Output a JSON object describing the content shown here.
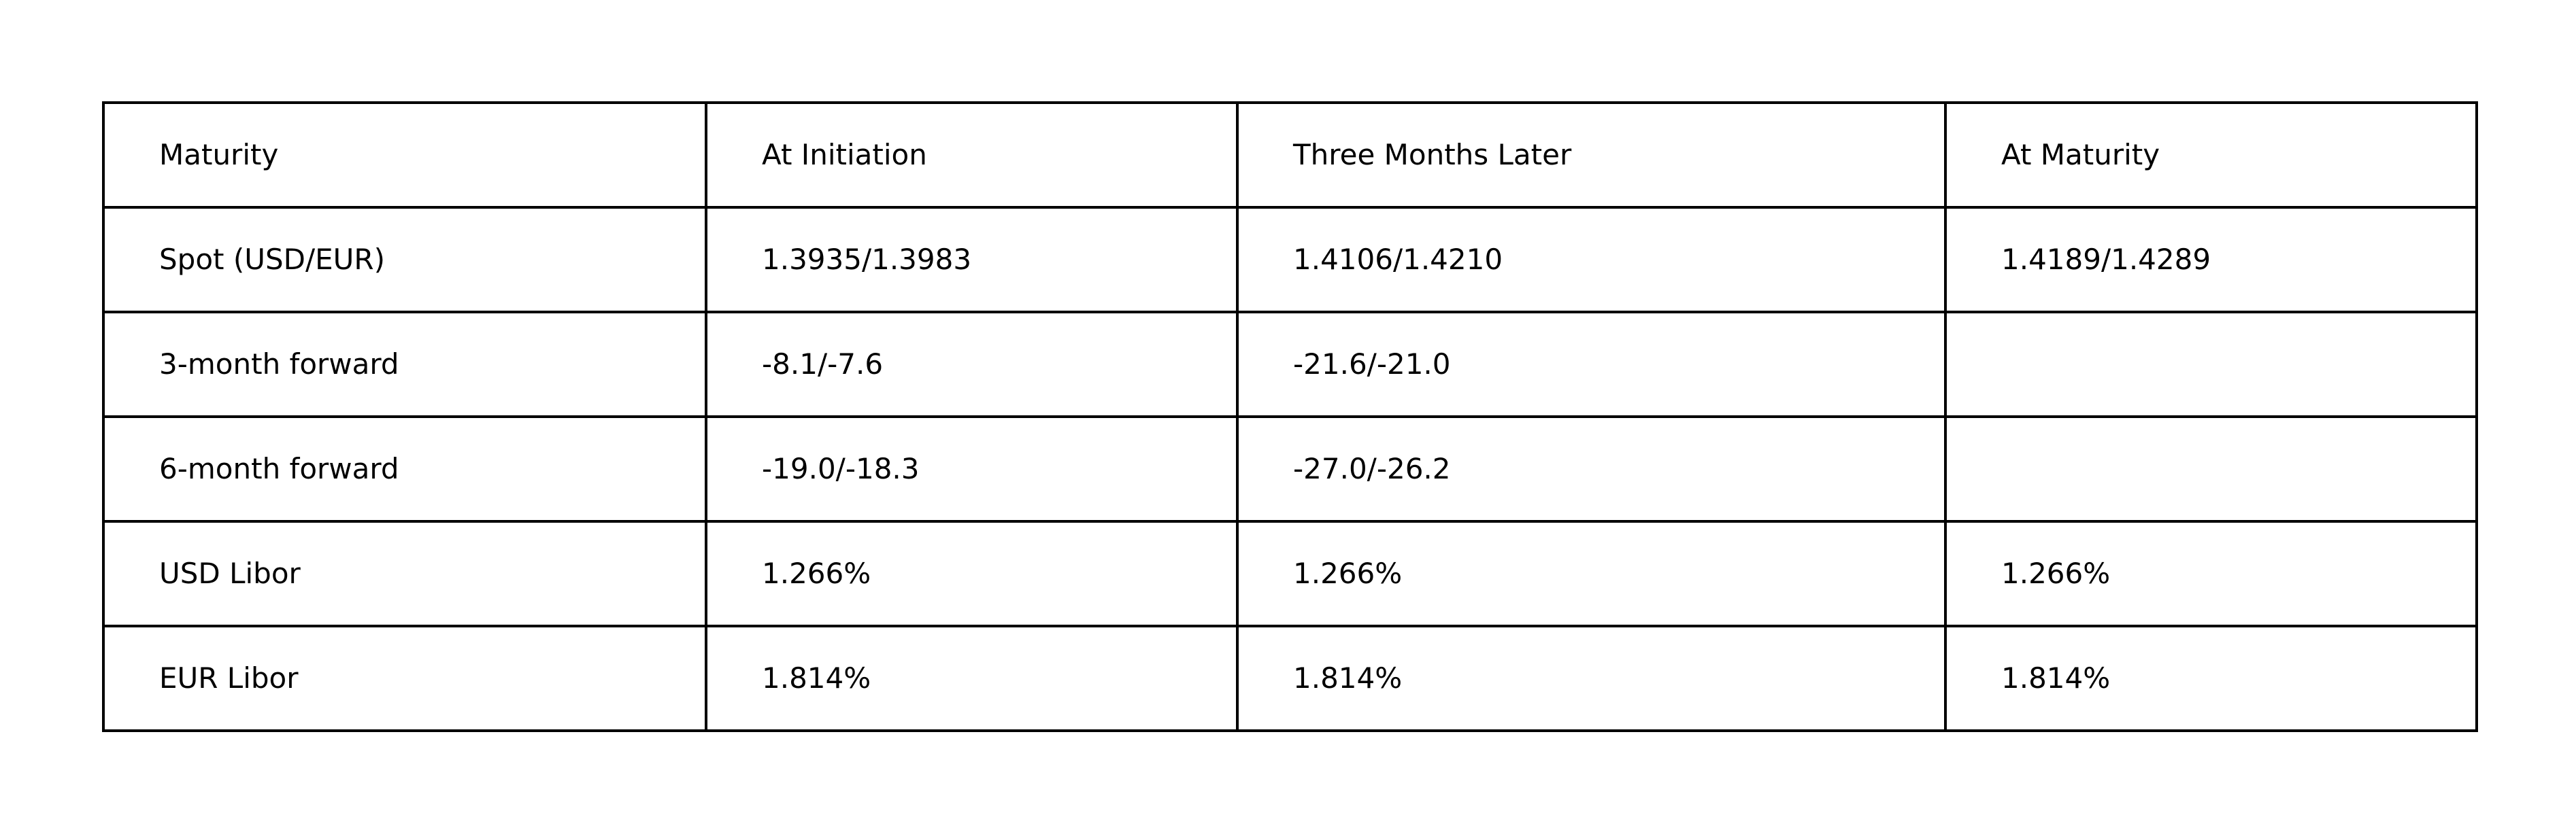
{
  "table": {
    "header": [
      "Maturity",
      "At Initiation",
      "Three Months Later",
      "At Maturity"
    ],
    "rows": [
      [
        "Spot (USD/EUR)",
        "1.3935/1.3983",
        "1.4106/1.4210",
        "1.4189/1.4289"
      ],
      [
        "3-month forward",
        "-8.1/-7.6",
        "-21.6/-21.0",
        ""
      ],
      [
        "6-month forward",
        "-19.0/-18.3",
        "-27.0/-26.2",
        ""
      ],
      [
        "USD Libor",
        "1.266%",
        "1.266%",
        "1.266%"
      ],
      [
        "EUR Libor",
        "1.814%",
        "1.814%",
        "1.814%"
      ]
    ]
  }
}
